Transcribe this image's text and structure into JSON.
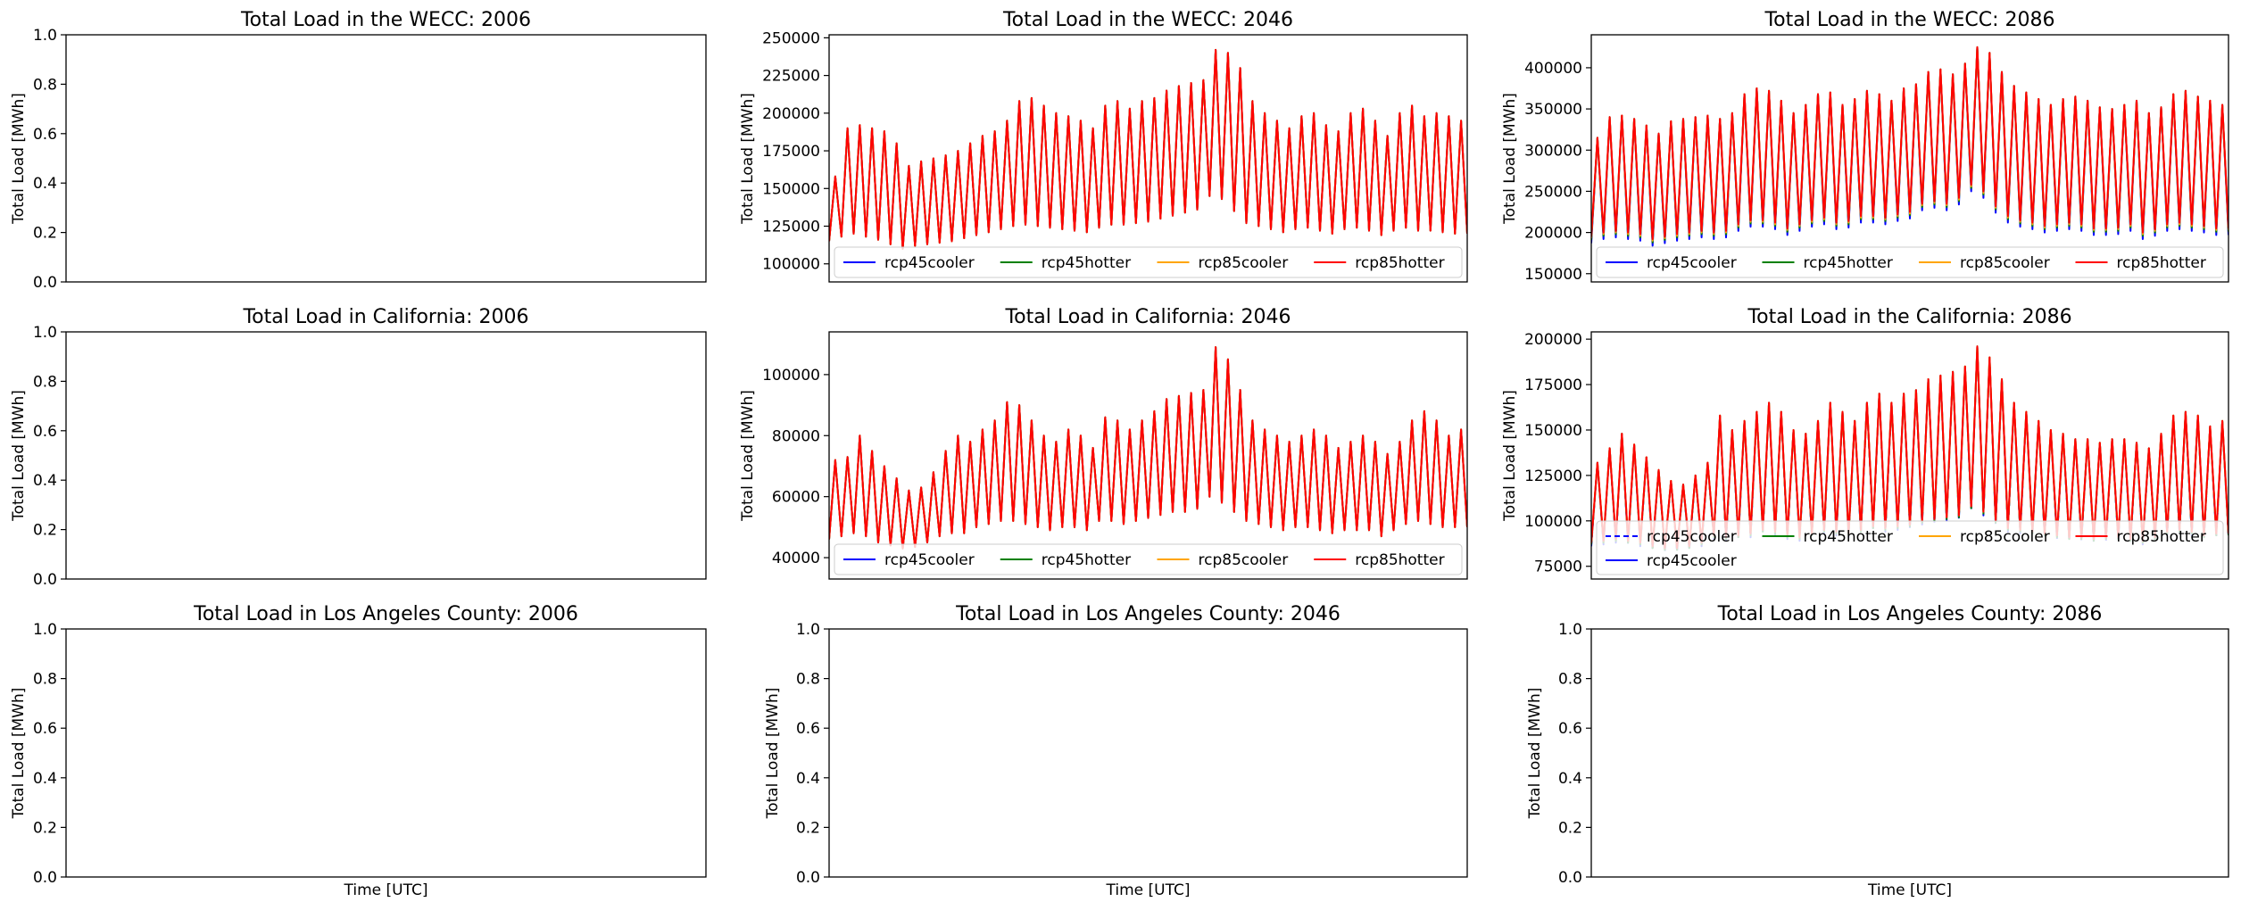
{
  "colors": {
    "rcp45cooler": "#0000ff",
    "rcp45hotter": "#008000",
    "rcp85cooler": "#ffa500",
    "rcp85hotter": "#ff0000"
  },
  "chart_data": [
    {
      "id": "wecc-2006",
      "type": "line",
      "title": "Total Load in the WECC: 2006",
      "ylabel": "Total Load [MWh]",
      "xlabel": "",
      "ylim": [
        0,
        1
      ],
      "yticks": [
        "0.0",
        "0.2",
        "0.4",
        "0.6",
        "0.8",
        "1.0"
      ],
      "ytick_values": [
        0,
        0.2,
        0.4,
        0.6,
        0.8,
        1.0
      ],
      "series": [],
      "legend": []
    },
    {
      "id": "wecc-2046",
      "type": "line",
      "title": "Total Load in the WECC: 2046",
      "ylabel": "Total Load [MWh]",
      "xlabel": "",
      "ylim": [
        88000,
        252000
      ],
      "yticks": [
        "100000",
        "125000",
        "150000",
        "175000",
        "200000",
        "225000",
        "250000"
      ],
      "ytick_values": [
        100000,
        125000,
        150000,
        175000,
        200000,
        225000,
        250000
      ],
      "legend_position": "lower center",
      "legend": [
        "rcp45cooler",
        "rcp45hotter",
        "rcp85cooler",
        "rcp85hotter"
      ],
      "series": [
        {
          "name": "rcp45cooler",
          "style": "solid"
        },
        {
          "name": "rcp45hotter",
          "style": "solid"
        },
        {
          "name": "rcp85cooler",
          "style": "solid"
        },
        {
          "name": "rcp85hotter",
          "style": "solid"
        }
      ],
      "signal": {
        "days": 52,
        "peak": [
          158000,
          190000,
          192000,
          190000,
          188000,
          180000,
          165000,
          168000,
          170000,
          172000,
          175000,
          180000,
          185000,
          188000,
          195000,
          208000,
          210000,
          205000,
          200000,
          198000,
          195000,
          190000,
          205000,
          208000,
          203000,
          208000,
          210000,
          215000,
          218000,
          220000,
          222000,
          242000,
          240000,
          230000,
          208000,
          200000,
          195000,
          190000,
          198000,
          200000,
          192000,
          188000,
          200000,
          203000,
          195000,
          185000,
          200000,
          205000,
          198000,
          200000,
          198000,
          195000
        ],
        "trough": [
          115000,
          118000,
          120000,
          118000,
          116000,
          113000,
          110000,
          112000,
          113000,
          114000,
          115000,
          117000,
          119000,
          121000,
          123000,
          125000,
          126000,
          125000,
          124000,
          123000,
          122000,
          121000,
          124000,
          126000,
          126000,
          127000,
          128000,
          130000,
          132000,
          134000,
          136000,
          145000,
          143000,
          135000,
          127000,
          125000,
          123000,
          121000,
          123000,
          124000,
          122000,
          120000,
          123000,
          124000,
          122000,
          119000,
          122000,
          124000,
          122000,
          122000,
          121000,
          120000
        ],
        "offsets": [
          {
            "name": "rcp45cooler",
            "peak": 0,
            "trough": 0
          },
          {
            "name": "rcp45hotter",
            "peak": 0,
            "trough": 0
          },
          {
            "name": "rcp85cooler",
            "peak": 0,
            "trough": 0
          },
          {
            "name": "rcp85hotter",
            "peak": 0,
            "trough": 0
          }
        ]
      }
    },
    {
      "id": "wecc-2086",
      "type": "line",
      "title": "Total Load in the WECC: 2086",
      "ylabel": "Total Load [MWh]",
      "xlabel": "",
      "ylim": [
        140000,
        440000
      ],
      "yticks": [
        "150000",
        "200000",
        "250000",
        "300000",
        "350000",
        "400000"
      ],
      "ytick_values": [
        150000,
        200000,
        250000,
        300000,
        350000,
        400000
      ],
      "legend_position": "lower center",
      "legend": [
        "rcp45cooler",
        "rcp45hotter",
        "rcp85cooler",
        "rcp85hotter"
      ],
      "series": [
        {
          "name": "rcp45cooler",
          "style": "solid"
        },
        {
          "name": "rcp45hotter",
          "style": "solid"
        },
        {
          "name": "rcp85cooler",
          "style": "solid"
        },
        {
          "name": "rcp85hotter",
          "style": "solid"
        }
      ],
      "signal": {
        "days": 52,
        "peak": [
          315000,
          340000,
          342000,
          338000,
          330000,
          320000,
          335000,
          338000,
          340000,
          342000,
          338000,
          345000,
          368000,
          375000,
          372000,
          360000,
          345000,
          355000,
          368000,
          370000,
          355000,
          362000,
          372000,
          368000,
          360000,
          375000,
          380000,
          395000,
          398000,
          392000,
          405000,
          425000,
          418000,
          395000,
          378000,
          370000,
          362000,
          355000,
          362000,
          365000,
          360000,
          352000,
          350000,
          355000,
          360000,
          345000,
          352000,
          368000,
          372000,
          365000,
          360000,
          355000
        ],
        "trough": [
          195000,
          200000,
          202000,
          200000,
          198000,
          192000,
          195000,
          198000,
          200000,
          202000,
          200000,
          202000,
          210000,
          215000,
          215000,
          212000,
          205000,
          210000,
          215000,
          218000,
          212000,
          214000,
          220000,
          220000,
          218000,
          222000,
          225000,
          235000,
          238000,
          235000,
          242000,
          258000,
          250000,
          232000,
          220000,
          215000,
          212000,
          208000,
          210000,
          212000,
          210000,
          205000,
          205000,
          206000,
          210000,
          200000,
          204000,
          210000,
          212000,
          210000,
          208000,
          205000
        ],
        "offsets": [
          {
            "name": "rcp45cooler",
            "peak": 0,
            "trough": -8000
          },
          {
            "name": "rcp45hotter",
            "peak": 0,
            "trough": -4000
          },
          {
            "name": "rcp85cooler",
            "peak": 0,
            "trough": -2000
          },
          {
            "name": "rcp85hotter",
            "peak": 0,
            "trough": 0
          }
        ]
      }
    },
    {
      "id": "ca-2006",
      "type": "line",
      "title": "Total Load in California: 2006",
      "ylabel": "Total Load [MWh]",
      "xlabel": "",
      "ylim": [
        0,
        1
      ],
      "yticks": [
        "0.0",
        "0.2",
        "0.4",
        "0.6",
        "0.8",
        "1.0"
      ],
      "ytick_values": [
        0,
        0.2,
        0.4,
        0.6,
        0.8,
        1.0
      ],
      "series": [],
      "legend": []
    },
    {
      "id": "ca-2046",
      "type": "line",
      "title": "Total Load in California: 2046",
      "ylabel": "Total Load [MWh]",
      "xlabel": "",
      "ylim": [
        33000,
        114000
      ],
      "yticks": [
        "40000",
        "60000",
        "80000",
        "100000"
      ],
      "ytick_values": [
        40000,
        60000,
        80000,
        100000
      ],
      "legend_position": "lower center",
      "legend": [
        "rcp45cooler",
        "rcp45hotter",
        "rcp85cooler",
        "rcp85hotter"
      ],
      "series": [
        {
          "name": "rcp45cooler",
          "style": "solid"
        },
        {
          "name": "rcp45hotter",
          "style": "solid"
        },
        {
          "name": "rcp85cooler",
          "style": "solid"
        },
        {
          "name": "rcp85hotter",
          "style": "solid"
        }
      ],
      "signal": {
        "days": 52,
        "peak": [
          72000,
          73000,
          80000,
          75000,
          70000,
          66000,
          62000,
          63000,
          68000,
          75000,
          80000,
          78000,
          82000,
          85000,
          91000,
          90000,
          85000,
          80000,
          78000,
          82000,
          80000,
          76000,
          86000,
          85000,
          82000,
          85000,
          88000,
          92000,
          93000,
          94000,
          95000,
          109000,
          105000,
          95000,
          85000,
          82000,
          80000,
          78000,
          80000,
          82000,
          80000,
          76000,
          78000,
          80000,
          78000,
          74000,
          78000,
          85000,
          88000,
          85000,
          80000,
          82000
        ],
        "trough": [
          46000,
          47000,
          48000,
          47000,
          45000,
          44000,
          43000,
          43500,
          45000,
          47000,
          48000,
          48000,
          50000,
          51000,
          52000,
          52000,
          51000,
          50000,
          49000,
          50000,
          50000,
          49000,
          52000,
          52000,
          51000,
          52000,
          53000,
          54000,
          55000,
          55000,
          56000,
          60000,
          58000,
          55000,
          52000,
          51000,
          50000,
          49000,
          50000,
          50000,
          49000,
          48000,
          49000,
          49000,
          49000,
          47000,
          49000,
          51000,
          52000,
          51000,
          50000,
          50000
        ],
        "offsets": [
          {
            "name": "rcp45cooler",
            "peak": 0,
            "trough": 0
          },
          {
            "name": "rcp45hotter",
            "peak": 0,
            "trough": 0
          },
          {
            "name": "rcp85cooler",
            "peak": 0,
            "trough": 0
          },
          {
            "name": "rcp85hotter",
            "peak": 0,
            "trough": 0
          }
        ]
      }
    },
    {
      "id": "ca-2086",
      "type": "line",
      "title": "Total Load in the California: 2086",
      "ylabel": "Total Load [MWh]",
      "xlabel": "",
      "ylim": [
        68000,
        204000
      ],
      "yticks": [
        "75000",
        "100000",
        "125000",
        "150000",
        "175000",
        "200000"
      ],
      "ytick_values": [
        75000,
        100000,
        125000,
        150000,
        175000,
        200000
      ],
      "legend_position": "lower center",
      "legend": [
        "rcp45cooler",
        "rcp45hotter",
        "rcp85cooler",
        "rcp85hotter",
        "rcp45cooler"
      ],
      "series": [
        {
          "name": "rcp45cooler",
          "style": "dashed"
        },
        {
          "name": "rcp45hotter",
          "style": "solid"
        },
        {
          "name": "rcp85cooler",
          "style": "solid"
        },
        {
          "name": "rcp85hotter",
          "style": "solid"
        },
        {
          "name": "rcp45cooler",
          "style": "solid"
        }
      ],
      "signal": {
        "days": 52,
        "peak": [
          132000,
          140000,
          148000,
          142000,
          135000,
          128000,
          122000,
          120000,
          125000,
          132000,
          158000,
          150000,
          155000,
          160000,
          165000,
          160000,
          150000,
          148000,
          155000,
          165000,
          160000,
          155000,
          165000,
          170000,
          165000,
          170000,
          172000,
          178000,
          180000,
          182000,
          185000,
          196000,
          190000,
          178000,
          165000,
          160000,
          155000,
          150000,
          148000,
          145000,
          145000,
          143000,
          145000,
          145000,
          143000,
          140000,
          148000,
          158000,
          160000,
          158000,
          152000,
          155000
        ],
        "trough": [
          88000,
          89000,
          90000,
          89000,
          88000,
          86000,
          85000,
          85000,
          86000,
          88000,
          92000,
          91000,
          92000,
          93000,
          95000,
          94000,
          92000,
          91000,
          93000,
          95000,
          94000,
          93000,
          95000,
          97000,
          96000,
          97000,
          98000,
          100000,
          101000,
          102000,
          103000,
          108000,
          105000,
          100000,
          96000,
          95000,
          94000,
          93000,
          92000,
          91000,
          91000,
          90000,
          91000,
          91000,
          90000,
          89000,
          91000,
          94000,
          95000,
          94000,
          92000,
          93000
        ],
        "offsets": [
          {
            "name": "rcp45cooler",
            "peak": 0,
            "trough": -2000
          },
          {
            "name": "rcp45hotter",
            "peak": 0,
            "trough": -1000
          },
          {
            "name": "rcp85cooler",
            "peak": 0,
            "trough": 0
          },
          {
            "name": "rcp85hotter",
            "peak": 0,
            "trough": 0
          }
        ]
      }
    },
    {
      "id": "la-2006",
      "type": "line",
      "title": "Total Load in Los Angeles County: 2006",
      "ylabel": "Total Load [MWh]",
      "xlabel": "Time [UTC]",
      "ylim": [
        0,
        1
      ],
      "yticks": [
        "0.0",
        "0.2",
        "0.4",
        "0.6",
        "0.8",
        "1.0"
      ],
      "ytick_values": [
        0,
        0.2,
        0.4,
        0.6,
        0.8,
        1.0
      ],
      "series": [],
      "legend": []
    },
    {
      "id": "la-2046",
      "type": "line",
      "title": "Total Load in Los Angeles County: 2046",
      "ylabel": "Total Load [MWh]",
      "xlabel": "Time [UTC]",
      "ylim": [
        0,
        1
      ],
      "yticks": [
        "0.0",
        "0.2",
        "0.4",
        "0.6",
        "0.8",
        "1.0"
      ],
      "ytick_values": [
        0,
        0.2,
        0.4,
        0.6,
        0.8,
        1.0
      ],
      "series": [],
      "legend": []
    },
    {
      "id": "la-2086",
      "type": "line",
      "title": "Total Load in Los Angeles County: 2086",
      "ylabel": "Total Load [MWh]",
      "xlabel": "Time [UTC]",
      "ylim": [
        0,
        1
      ],
      "yticks": [
        "0.0",
        "0.2",
        "0.4",
        "0.6",
        "0.8",
        "1.0"
      ],
      "ytick_values": [
        0,
        0.2,
        0.4,
        0.6,
        0.8,
        1.0
      ],
      "series": [],
      "legend": []
    }
  ]
}
